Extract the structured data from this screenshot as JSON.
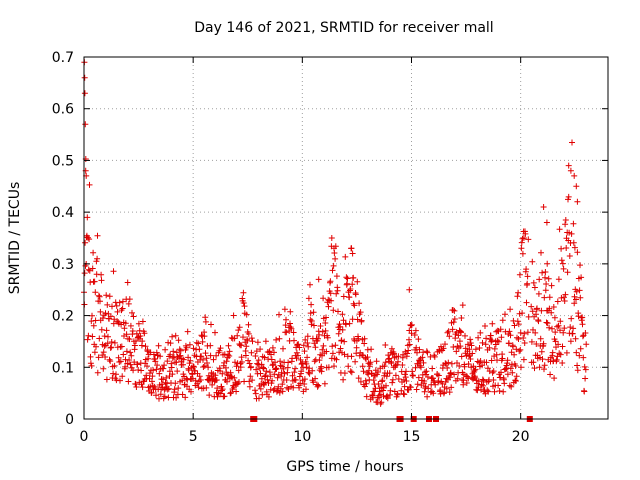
{
  "chart_data": {
    "type": "scatter",
    "title": "Day 146 of 2021, SRMTID for receiver mall",
    "xlabel": "GPS time / hours",
    "ylabel": "SRMTID / TECUs",
    "xlim": [
      0,
      24
    ],
    "ylim": [
      0,
      0.7
    ],
    "xticks": [
      0,
      5,
      10,
      15,
      20
    ],
    "yticks": [
      0,
      0.1,
      0.2,
      0.3,
      0.4,
      0.5,
      0.6,
      0.7
    ],
    "grid": true,
    "marker": "plus",
    "color": "#e00000",
    "sampling_minutes": 1,
    "segments": [
      {
        "start": 0.0,
        "end": 23.0,
        "gaps": [
          [
            7.72,
            7.82
          ],
          [
            14.42,
            14.52
          ],
          [
            15.08,
            15.14
          ],
          [
            15.78,
            15.86
          ],
          [
            16.1,
            16.16
          ],
          [
            20.38,
            20.48
          ]
        ]
      }
    ],
    "envelope": [
      {
        "x": 0.0,
        "y": 0.16
      },
      {
        "x": 0.05,
        "y": 0.42
      },
      {
        "x": 0.1,
        "y": 0.3
      },
      {
        "x": 0.3,
        "y": 0.22
      },
      {
        "x": 0.6,
        "y": 0.2
      },
      {
        "x": 1.0,
        "y": 0.17
      },
      {
        "x": 1.5,
        "y": 0.16
      },
      {
        "x": 2.0,
        "y": 0.15
      },
      {
        "x": 2.5,
        "y": 0.12
      },
      {
        "x": 3.0,
        "y": 0.09
      },
      {
        "x": 3.5,
        "y": 0.08
      },
      {
        "x": 4.0,
        "y": 0.085
      },
      {
        "x": 4.5,
        "y": 0.09
      },
      {
        "x": 5.0,
        "y": 0.1
      },
      {
        "x": 5.5,
        "y": 0.11
      },
      {
        "x": 6.0,
        "y": 0.09
      },
      {
        "x": 6.5,
        "y": 0.085
      },
      {
        "x": 7.0,
        "y": 0.12
      },
      {
        "x": 7.3,
        "y": 0.16
      },
      {
        "x": 7.6,
        "y": 0.11
      },
      {
        "x": 8.0,
        "y": 0.08
      },
      {
        "x": 8.5,
        "y": 0.085
      },
      {
        "x": 9.0,
        "y": 0.11
      },
      {
        "x": 9.5,
        "y": 0.12
      },
      {
        "x": 10.0,
        "y": 0.08
      },
      {
        "x": 10.4,
        "y": 0.15
      },
      {
        "x": 10.8,
        "y": 0.12
      },
      {
        "x": 11.2,
        "y": 0.16
      },
      {
        "x": 11.5,
        "y": 0.23
      },
      {
        "x": 11.8,
        "y": 0.15
      },
      {
        "x": 12.2,
        "y": 0.2
      },
      {
        "x": 12.6,
        "y": 0.16
      },
      {
        "x": 13.0,
        "y": 0.08
      },
      {
        "x": 13.5,
        "y": 0.06
      },
      {
        "x": 14.0,
        "y": 0.09
      },
      {
        "x": 14.5,
        "y": 0.08
      },
      {
        "x": 15.0,
        "y": 0.13
      },
      {
        "x": 15.5,
        "y": 0.09
      },
      {
        "x": 16.0,
        "y": 0.08
      },
      {
        "x": 16.5,
        "y": 0.1
      },
      {
        "x": 17.0,
        "y": 0.13
      },
      {
        "x": 17.5,
        "y": 0.11
      },
      {
        "x": 18.0,
        "y": 0.09
      },
      {
        "x": 18.5,
        "y": 0.11
      },
      {
        "x": 19.0,
        "y": 0.12
      },
      {
        "x": 19.5,
        "y": 0.11
      },
      {
        "x": 19.9,
        "y": 0.16
      },
      {
        "x": 20.1,
        "y": 0.25
      },
      {
        "x": 20.4,
        "y": 0.22
      },
      {
        "x": 20.8,
        "y": 0.17
      },
      {
        "x": 21.2,
        "y": 0.2
      },
      {
        "x": 21.6,
        "y": 0.14
      },
      {
        "x": 22.0,
        "y": 0.26
      },
      {
        "x": 22.3,
        "y": 0.3
      },
      {
        "x": 22.6,
        "y": 0.2
      },
      {
        "x": 23.0,
        "y": 0.08
      }
    ],
    "peaks": [
      {
        "x": 0.02,
        "y": 0.69
      },
      {
        "x": 0.03,
        "y": 0.66
      },
      {
        "x": 0.04,
        "y": 0.63
      },
      {
        "x": 0.06,
        "y": 0.57
      },
      {
        "x": 0.08,
        "y": 0.48
      },
      {
        "x": 0.1,
        "y": 0.47
      },
      {
        "x": 10.75,
        "y": 0.27
      },
      {
        "x": 11.35,
        "y": 0.35
      },
      {
        "x": 11.45,
        "y": 0.33
      },
      {
        "x": 12.25,
        "y": 0.33
      },
      {
        "x": 12.3,
        "y": 0.32
      },
      {
        "x": 14.9,
        "y": 0.25
      },
      {
        "x": 20.15,
        "y": 0.35
      },
      {
        "x": 21.05,
        "y": 0.41
      },
      {
        "x": 21.2,
        "y": 0.38
      },
      {
        "x": 22.2,
        "y": 0.49
      },
      {
        "x": 22.3,
        "y": 0.48
      },
      {
        "x": 22.55,
        "y": 0.45
      },
      {
        "x": 22.6,
        "y": 0.42
      },
      {
        "x": 22.45,
        "y": 0.47
      }
    ],
    "zero_markers": [
      7.75,
      7.8,
      14.45,
      14.5,
      15.1,
      15.8,
      16.12,
      20.42
    ]
  }
}
